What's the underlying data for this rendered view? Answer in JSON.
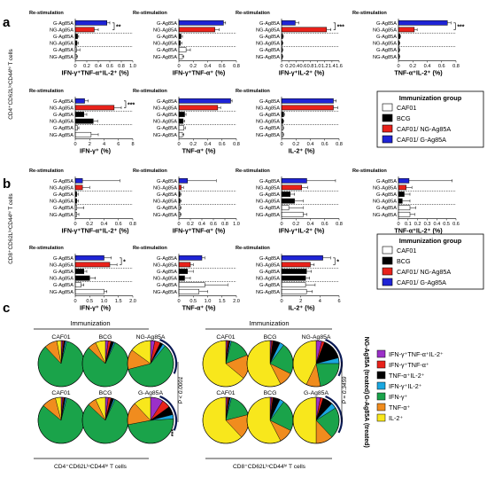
{
  "panel_labels": {
    "a": "a",
    "b": "b",
    "c": "c"
  },
  "common": {
    "restim_label": "Re-stimulation",
    "categories": [
      "G-Ag85A",
      "NG-Ag85A",
      "G-Ag85A",
      "NG-Ag85A",
      "G-Ag85A",
      "NG-Ag85A"
    ]
  },
  "rows": {
    "a": {
      "ylabel": "CD4⁺CD62LˡᵒCD44ʰⁱ T cells"
    },
    "b": {
      "ylabel": "CD8⁺CD62LˡᵒCD44ʰⁱ T cells"
    }
  },
  "legend": {
    "title": "Immunization group",
    "items": [
      {
        "label": "CAF01",
        "color": "#ffffff"
      },
      {
        "label": "BCG",
        "color": "#000000"
      },
      {
        "label": "CAF01/ NG-Ag85A",
        "color": "#e8221b"
      },
      {
        "label": "CAF01/ G-Ag85A",
        "color": "#1f24d6"
      }
    ]
  },
  "group_colors": [
    "#1f24d6",
    "#e8221b",
    "#000000",
    "#000000",
    "#ffffff",
    "#ffffff"
  ],
  "chart_data": [
    {
      "type": "bar",
      "panel": "a",
      "xlabel": "IFN-γ⁺TNF-α⁺IL-2⁺ (%)",
      "xlim": [
        0,
        1.0
      ],
      "ticks": [
        "0",
        "0.2",
        "0.4",
        "0.6",
        "0.8",
        "1.0"
      ],
      "values": [
        0.55,
        0.33,
        0.04,
        0.03,
        0.02,
        0.02
      ],
      "errors": [
        0.05,
        0.07,
        0.02,
        0.02,
        0.06,
        0.02
      ],
      "sig": "**"
    },
    {
      "type": "bar",
      "panel": "a",
      "xlabel": "IFN-γ⁺TNF-α⁺ (%)",
      "xlim": [
        0,
        0.8
      ],
      "ticks": [
        "0",
        "0.2",
        "0.4",
        "0.6",
        "0.8"
      ],
      "values": [
        0.62,
        0.5,
        0.03,
        0.02,
        0.1,
        0.05
      ],
      "errors": [
        0.03,
        0.06,
        0.02,
        0.02,
        0.06,
        0.02
      ],
      "sig": ""
    },
    {
      "type": "bar",
      "panel": "a",
      "xlabel": "IFN-γ⁺IL-2⁺ (%)",
      "xlim": [
        0,
        1.6
      ],
      "ticks": [
        "0",
        "0.2",
        "0.4",
        "0.6",
        "0.8",
        "1.0",
        "1.2",
        "1.4",
        "1.6"
      ],
      "values": [
        0.38,
        1.25,
        0.03,
        0.02,
        0.02,
        0.02
      ],
      "errors": [
        0.1,
        0.12,
        0.02,
        0.02,
        0.02,
        0.02
      ],
      "sig": "***"
    },
    {
      "type": "bar",
      "panel": "a",
      "xlabel": "TNF-α⁺IL-2⁺ (%)",
      "xlim": [
        0,
        0.8
      ],
      "ticks": [
        "0",
        "0.2",
        "0.4",
        "0.6",
        "0.8"
      ],
      "values": [
        0.68,
        0.22,
        0.02,
        0.01,
        0.01,
        0.01
      ],
      "errors": [
        0.05,
        0.04,
        0.01,
        0.01,
        0.01,
        0.01
      ],
      "sig": "***"
    },
    {
      "type": "bar",
      "panel": "a",
      "xlabel": "IFN-γ⁺ (%)",
      "xlim": [
        0,
        8
      ],
      "ticks": [
        "0",
        "2",
        "4",
        "6",
        "8"
      ],
      "values": [
        1.3,
        5.4,
        1.2,
        2.5,
        0.3,
        2.2
      ],
      "errors": [
        0.5,
        1.0,
        0.4,
        0.6,
        0.2,
        1.0
      ],
      "sig": "***"
    },
    {
      "type": "bar",
      "panel": "a",
      "xlabel": "TNF-α⁺ (%)",
      "xlim": [
        0,
        0.8
      ],
      "ticks": [
        "0",
        "0.2",
        "0.4",
        "0.6",
        "0.8"
      ],
      "values": [
        0.72,
        0.54,
        0.08,
        0.06,
        0.07,
        0.05
      ],
      "errors": [
        0.02,
        0.04,
        0.02,
        0.02,
        0.02,
        0.02
      ],
      "sig": ""
    },
    {
      "type": "bar",
      "panel": "a",
      "xlabel": "IL-2⁺ (%)",
      "xlim": [
        0,
        0.8
      ],
      "ticks": [
        "0",
        "0.2",
        "0.4",
        "0.6",
        "0.8"
      ],
      "values": [
        0.72,
        0.72,
        0.03,
        0.02,
        0.02,
        0.02
      ],
      "errors": [
        0.04,
        0.06,
        0.01,
        0.01,
        0.01,
        0.01
      ],
      "sig": ""
    },
    {
      "type": "bar",
      "panel": "b",
      "xlabel": "IFN-γ⁺TNF-α⁺IL-2⁺ (%)",
      "xlim": [
        0,
        0.8
      ],
      "ticks": [
        "0",
        "0.2",
        "0.4",
        "0.6",
        "0.8"
      ],
      "values": [
        0.1,
        0.1,
        0.02,
        0.02,
        0.02,
        0.02
      ],
      "errors": [
        0.52,
        0.1,
        0.02,
        0.02,
        0.1,
        0.03
      ],
      "sig": ""
    },
    {
      "type": "bar",
      "panel": "b",
      "xlabel": "IFN-γ⁺TNF-α⁺ (%)",
      "xlim": [
        0,
        1.0
      ],
      "ticks": [
        "0",
        "0.2",
        "0.4",
        "0.6",
        "0.8",
        "1.0"
      ],
      "values": [
        0.15,
        0.04,
        0.02,
        0.02,
        0.02,
        0.02
      ],
      "errors": [
        0.5,
        0.04,
        0.02,
        0.02,
        0.02,
        0.02
      ],
      "sig": ""
    },
    {
      "type": "bar",
      "panel": "b",
      "xlabel": "IFN-γ⁺IL-2⁺ (%)",
      "xlim": [
        0,
        0.8
      ],
      "ticks": [
        "0",
        "0.2",
        "0.4",
        "0.6",
        "0.8"
      ],
      "values": [
        0.35,
        0.28,
        0.12,
        0.18,
        0.1,
        0.3
      ],
      "errors": [
        0.4,
        0.08,
        0.06,
        0.12,
        0.2,
        0.05
      ],
      "sig": ""
    },
    {
      "type": "bar",
      "panel": "b",
      "xlabel": "TNF-α⁺IL-2⁺ (%)",
      "xlim": [
        0,
        0.6
      ],
      "ticks": [
        "0",
        "0.1",
        "0.2",
        "0.3",
        "0.4",
        "0.5",
        "0.6"
      ],
      "values": [
        0.11,
        0.08,
        0.06,
        0.04,
        0.12,
        0.12
      ],
      "errors": [
        0.45,
        0.06,
        0.06,
        0.08,
        0.06,
        0.05
      ],
      "sig": ""
    },
    {
      "type": "bar",
      "panel": "b",
      "xlabel": "IFN-γ⁺ (%)",
      "xlim": [
        0,
        2.0
      ],
      "ticks": [
        "0",
        "0.5",
        "1.0",
        "1.5",
        "2.0"
      ],
      "values": [
        1.0,
        1.2,
        0.3,
        0.5,
        0.2,
        1.0
      ],
      "errors": [
        0.25,
        0.25,
        0.1,
        0.2,
        0.1,
        0.1
      ],
      "sig": "*"
    },
    {
      "type": "bar",
      "panel": "b",
      "xlabel": "TNF-α⁺ (%)",
      "xlim": [
        0,
        2.0
      ],
      "ticks": [
        "0",
        "0.5",
        "1.0",
        "1.5",
        "2.0"
      ],
      "values": [
        0.8,
        0.4,
        0.3,
        0.2,
        0.9,
        0.7
      ],
      "errors": [
        0.1,
        0.1,
        0.2,
        0.2,
        0.8,
        0.3
      ],
      "sig": ""
    },
    {
      "type": "bar",
      "panel": "b",
      "xlabel": "IL-2⁺ (%)",
      "xlim": [
        0,
        6
      ],
      "ticks": [
        "0",
        "2",
        "4",
        "6"
      ],
      "values": [
        4.3,
        3.0,
        2.6,
        2.5,
        2.5,
        2.6
      ],
      "errors": [
        0.8,
        0.4,
        0.5,
        0.4,
        1.0,
        0.6
      ],
      "sig": "*"
    }
  ],
  "panel_c": {
    "immunization_label": "Immunization",
    "groups_cd4": [
      "CAF01",
      "BCG",
      "NG-Ag85A"
    ],
    "groups_cd4_bottom": [
      "CAF01",
      "BCG",
      "G-Ag85A"
    ],
    "groups_cd8": [
      "CAF01",
      "BCG",
      "NG-Ag85A"
    ],
    "groups_cd8_bottom": [
      "CAF01",
      "BCG",
      "G-Ag85A"
    ],
    "pvalue_cd4": "P < 0.0001",
    "pvalue_cd8": "P = 0.3459",
    "sig_cd4": "***",
    "caption_cd4": "CD4⁺CD62LˡᵒCD44ʰⁱ T cells",
    "caption_cd8": "CD8⁺CD62LˡᵒCD44ʰⁱ T cells",
    "side_top": "NG-Ag85A (treated)",
    "side_bottom": "G-Ag85A (treated)",
    "legend": [
      {
        "label": "IFN-γ⁺TNF-α⁺IL-2⁺",
        "color": "#9b30c8"
      },
      {
        "label": "IFN-γ⁺TNF-α⁺",
        "color": "#e8221b"
      },
      {
        "label": "TNF-α⁺IL-2⁺",
        "color": "#000000"
      },
      {
        "label": "IFN-γ⁺IL-2⁺",
        "color": "#1aa7e0"
      },
      {
        "label": "IFN-γ⁺",
        "color": "#1aa34a"
      },
      {
        "label": "TNF-α⁺",
        "color": "#f08c1e"
      },
      {
        "label": "IL-2⁺",
        "color": "#f8e71c"
      }
    ],
    "pies": {
      "type": "pie",
      "slice_order": [
        "IFN-γ⁺TNF-α⁺IL-2⁺",
        "IFN-γ⁺TNF-α⁺",
        "TNF-α⁺IL-2⁺",
        "IFN-γ⁺IL-2⁺",
        "IFN-γ⁺",
        "TNF-α⁺",
        "IL-2⁺"
      ],
      "cd4_top": [
        [
          1,
          1,
          1,
          1,
          84,
          9,
          3
        ],
        [
          2,
          2,
          2,
          1,
          80,
          6,
          7
        ],
        [
          3,
          4,
          2,
          2,
          60,
          14,
          15
        ]
      ],
      "cd4_bottom": [
        [
          1,
          1,
          1,
          1,
          82,
          10,
          4
        ],
        [
          2,
          2,
          2,
          1,
          80,
          6,
          7
        ],
        [
          9,
          6,
          6,
          3,
          48,
          16,
          12
        ]
      ],
      "cd8_top": [
        [
          1,
          1,
          1,
          1,
          15,
          17,
          64
        ],
        [
          1,
          1,
          5,
          3,
          22,
          10,
          57
        ],
        [
          4,
          2,
          15,
          4,
          22,
          10,
          43
        ]
      ],
      "cd8_bottom": [
        [
          1,
          1,
          1,
          1,
          17,
          17,
          62
        ],
        [
          1,
          1,
          5,
          3,
          22,
          10,
          57
        ],
        [
          3,
          2,
          7,
          4,
          22,
          12,
          50
        ]
      ]
    }
  }
}
